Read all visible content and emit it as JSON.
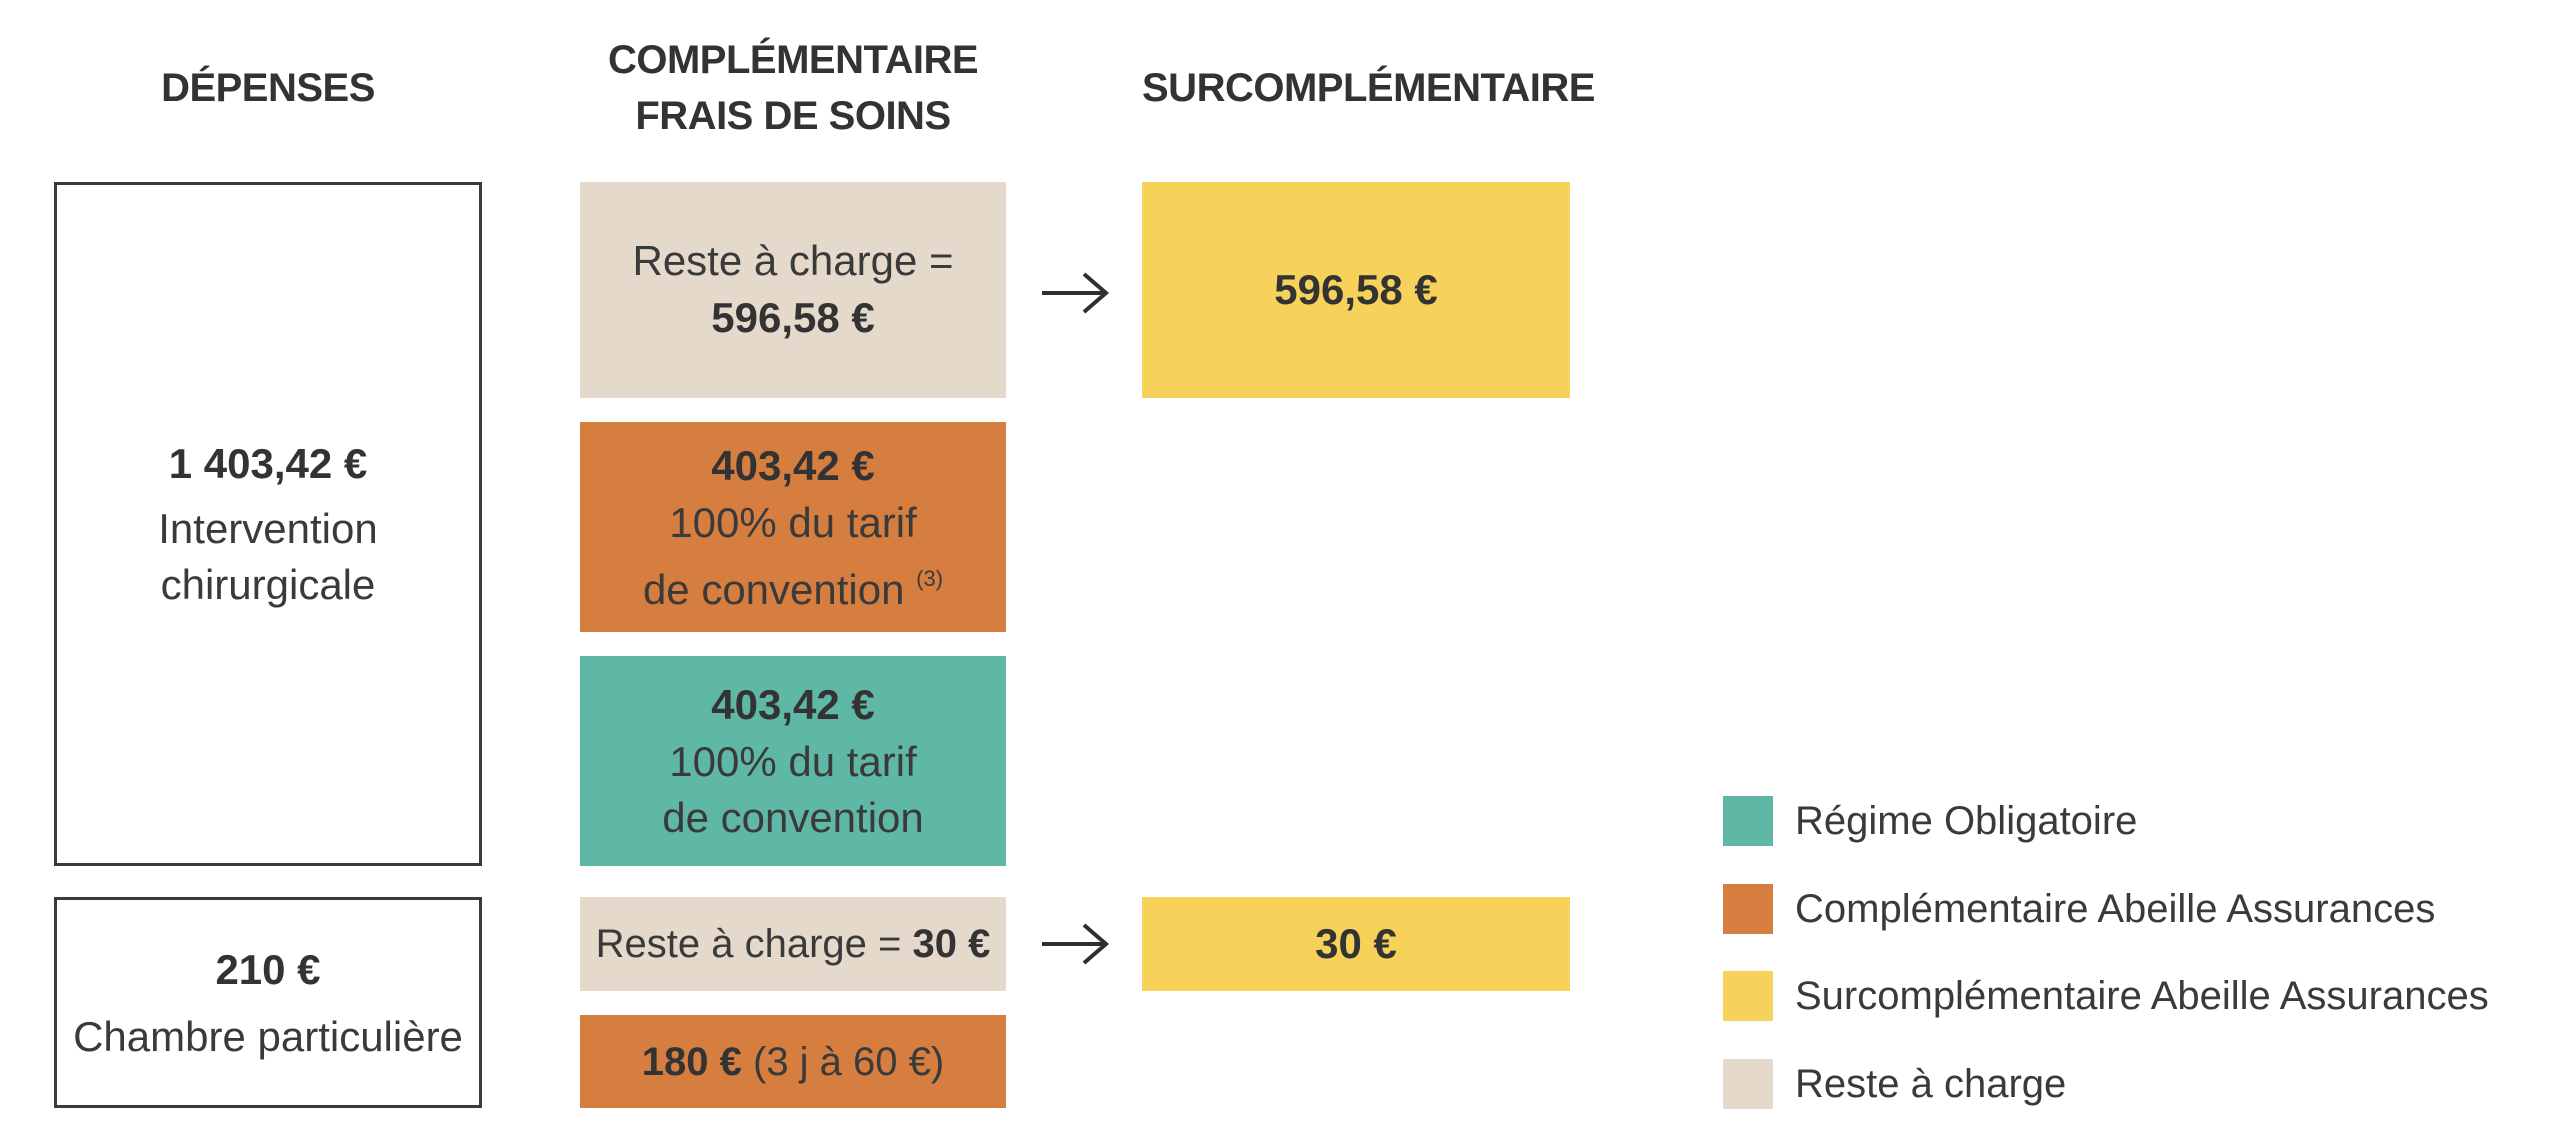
{
  "headers": {
    "depenses": "DÉPENSES",
    "complementaire_line1": "COMPLÉMENTAIRE",
    "complementaire_line2": "FRAIS DE SOINS",
    "surcomplementaire": "SURCOMPLÉMENTAIRE"
  },
  "depenses": {
    "intervention": {
      "amount": "1 403,42 €",
      "label_line1": "Intervention",
      "label_line2": "chirurgicale"
    },
    "chambre": {
      "amount": "210 €",
      "label": "Chambre particulière"
    }
  },
  "complementaire": {
    "reste_intervention": {
      "label": "Reste à charge =",
      "amount": "596,58 €"
    },
    "abeille_intervention": {
      "amount": "403,42 €",
      "line1": "100% du tarif",
      "line2": "de convention",
      "note": "(3)"
    },
    "regime_intervention": {
      "amount": "403,42 €",
      "line1": "100% du tarif",
      "line2": "de convention"
    },
    "reste_chambre": {
      "label": "Reste à charge =",
      "amount": "30 €"
    },
    "abeille_chambre": {
      "amount": "180 €",
      "detail": "(3 j à 60 €)"
    }
  },
  "surcomplementaire": {
    "intervention": {
      "amount": "596,58 €"
    },
    "chambre": {
      "amount": "30 €"
    }
  },
  "legend": [
    {
      "label": "Régime Obligatoire",
      "color": "#5fb8a5"
    },
    {
      "label": "Complémentaire Abeille Assurances",
      "color": "#d67d40"
    },
    {
      "label": "Surcomplémentaire Abeille Assurances",
      "color": "#f7d25a"
    },
    {
      "label": "Reste à charge",
      "color": "#e5d9cb"
    }
  ],
  "colors": {
    "regime": "#5fb8a5",
    "complementaire": "#d67d40",
    "surcomplementaire": "#f7d25a",
    "reste": "#e5d9cb"
  }
}
